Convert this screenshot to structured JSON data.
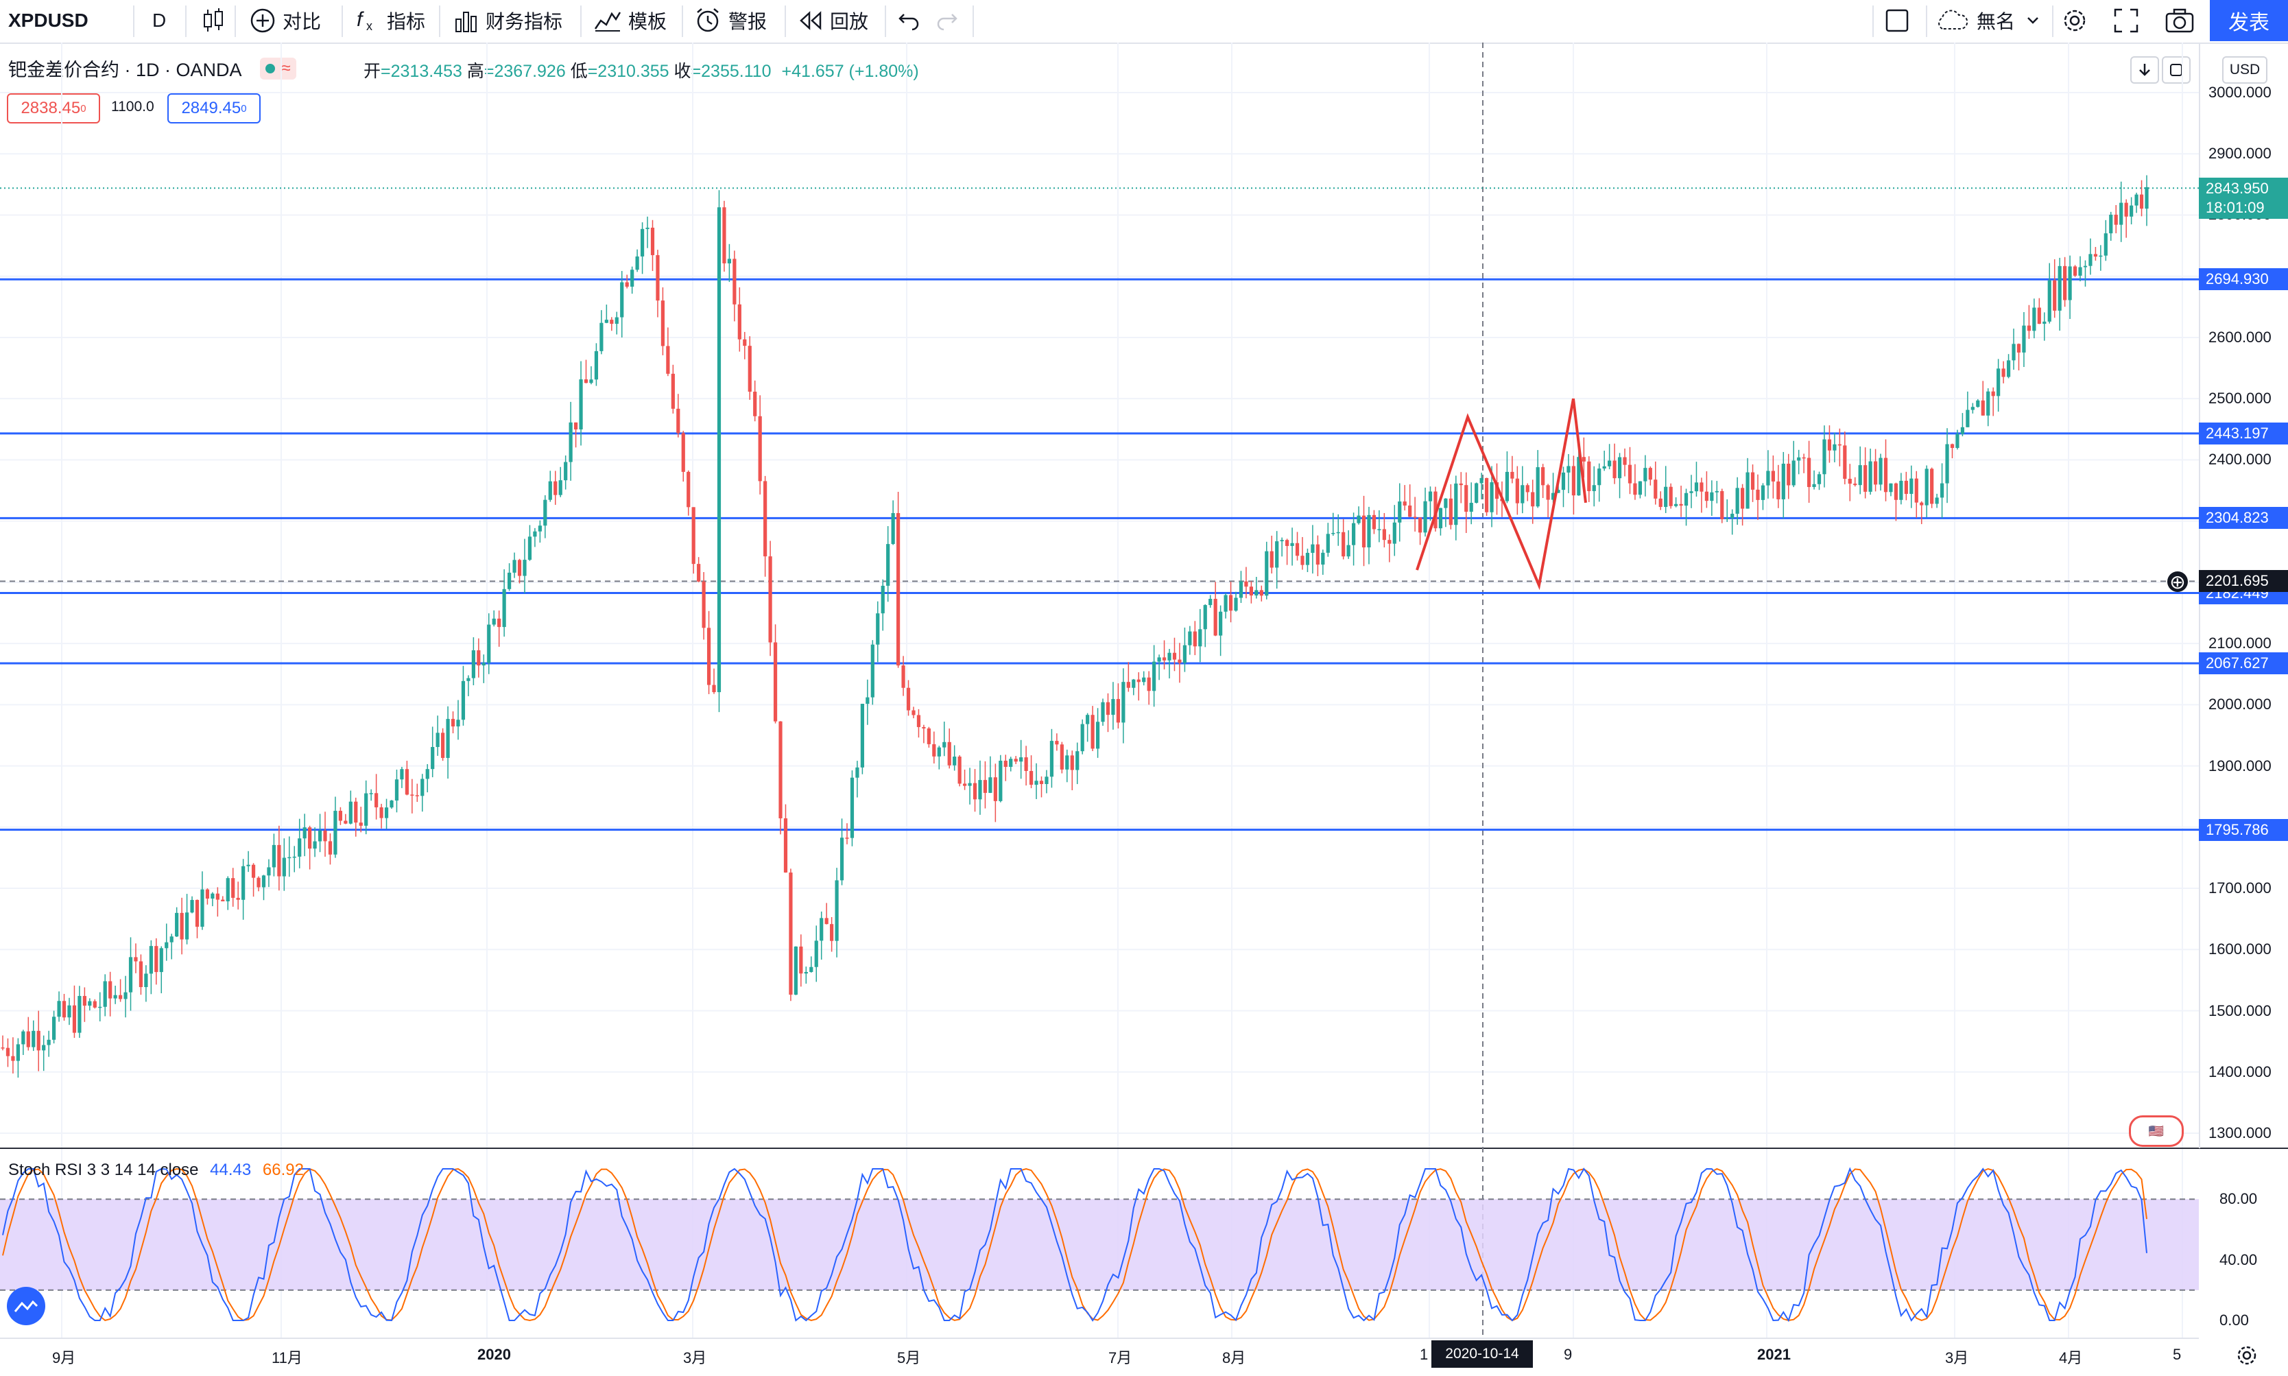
{
  "toolbar": {
    "symbol": "XPDUSD",
    "interval": "D",
    "compare": "对比",
    "indicators": "指标",
    "financials": "财务指标",
    "templates": "模板",
    "alerts": "警报",
    "replay": "回放",
    "layout_name": "無名",
    "publish": "发表"
  },
  "legend": {
    "title": "钯金差价合约 · 1D · OANDA",
    "open_label": "开",
    "open": "=2313.453",
    "high_label": "高",
    "high": "=2367.926",
    "low_label": "低",
    "low": "=2310.355",
    "close_label": "收",
    "close": "=2355.110",
    "change": "+41.657 (+1.80%)",
    "sell_price": "2838.45",
    "sell_sup": "0",
    "spread": "1100.0",
    "buy_price": "2849.45",
    "buy_sup": "0"
  },
  "price_axis": {
    "currency": "USD",
    "ticks": [
      "3000.000",
      "2900.000",
      "2800.000",
      "2700.000",
      "2600.000",
      "2500.000",
      "2400.000",
      "2300.000",
      "2200.000",
      "2100.000",
      "2000.000",
      "1900.000",
      "1800.000",
      "1700.000",
      "1600.000",
      "1500.000",
      "1400.000",
      "1300.000"
    ],
    "current_price": "2843.950",
    "countdown": "18:01:09",
    "crosshair_price": "2201.695",
    "line_labels": [
      "2694.930",
      "2443.197",
      "2304.823",
      "2182.449",
      "2067.627",
      "1795.786"
    ]
  },
  "time_axis": {
    "ticks": [
      "9月",
      "11月",
      "2020",
      "3月",
      "5月",
      "7月",
      "8月",
      "1",
      "9",
      "2021",
      "3月",
      "4月",
      "5"
    ],
    "crosshair_date": "2020-10-14"
  },
  "stoch": {
    "label": "Stoch RSI 3 3 14 14 close",
    "k_value": "44.43",
    "d_value": "66.92",
    "ticks": [
      "80.00",
      "40.00",
      "0.00"
    ]
  },
  "colors": {
    "up": "#26a69a",
    "down": "#ef5350",
    "hline": "#2962ff",
    "k_line": "#2962ff",
    "d_line": "#ff6d00",
    "band": "#e1d2fb"
  },
  "chart_data": [
    {
      "type": "candlestick",
      "title": "钯金差价合约 · 1D · OANDA",
      "ylim": [
        1300,
        3000
      ],
      "x_ticks": [
        "9月",
        "11月",
        "2020",
        "3月",
        "5月",
        "7月",
        "8月",
        "1",
        "9",
        "2021",
        "3月",
        "4月",
        "5"
      ],
      "close_path": [
        {
          "date": "2019-08",
          "close": 1440
        },
        {
          "date": "2019-09",
          "close": 1520
        },
        {
          "date": "2019-10",
          "close": 1700
        },
        {
          "date": "2019-11",
          "close": 1780
        },
        {
          "date": "2019-12",
          "close": 1900
        },
        {
          "date": "2020-01",
          "close": 2300
        },
        {
          "date": "2020-02",
          "close": 2800
        },
        {
          "date": "2020-03",
          "close": 1550
        },
        {
          "date": "2020-04",
          "close": 2150
        },
        {
          "date": "2020-05",
          "close": 1850
        },
        {
          "date": "2020-06",
          "close": 1930
        },
        {
          "date": "2020-07",
          "close": 2100
        },
        {
          "date": "2020-08",
          "close": 2250
        },
        {
          "date": "2020-09",
          "close": 2300
        },
        {
          "date": "2020-10",
          "close": 2350
        },
        {
          "date": "2020-11",
          "close": 2380
        },
        {
          "date": "2020-12",
          "close": 2330
        },
        {
          "date": "2021-01",
          "close": 2400
        },
        {
          "date": "2021-02",
          "close": 2350
        },
        {
          "date": "2021-03",
          "close": 2650
        },
        {
          "date": "2021-04",
          "close": 2843.95
        }
      ],
      "horizontal_lines": [
        2694.93,
        2443.197,
        2304.823,
        2182.449,
        2067.627,
        1795.786
      ]
    },
    {
      "type": "line",
      "title": "Stoch RSI 3 3 14 14 close",
      "ylim": [
        0,
        100
      ],
      "series": [
        {
          "name": "K",
          "last": 44.43
        },
        {
          "name": "D",
          "last": 66.92
        }
      ],
      "bands": [
        20,
        80
      ]
    }
  ]
}
